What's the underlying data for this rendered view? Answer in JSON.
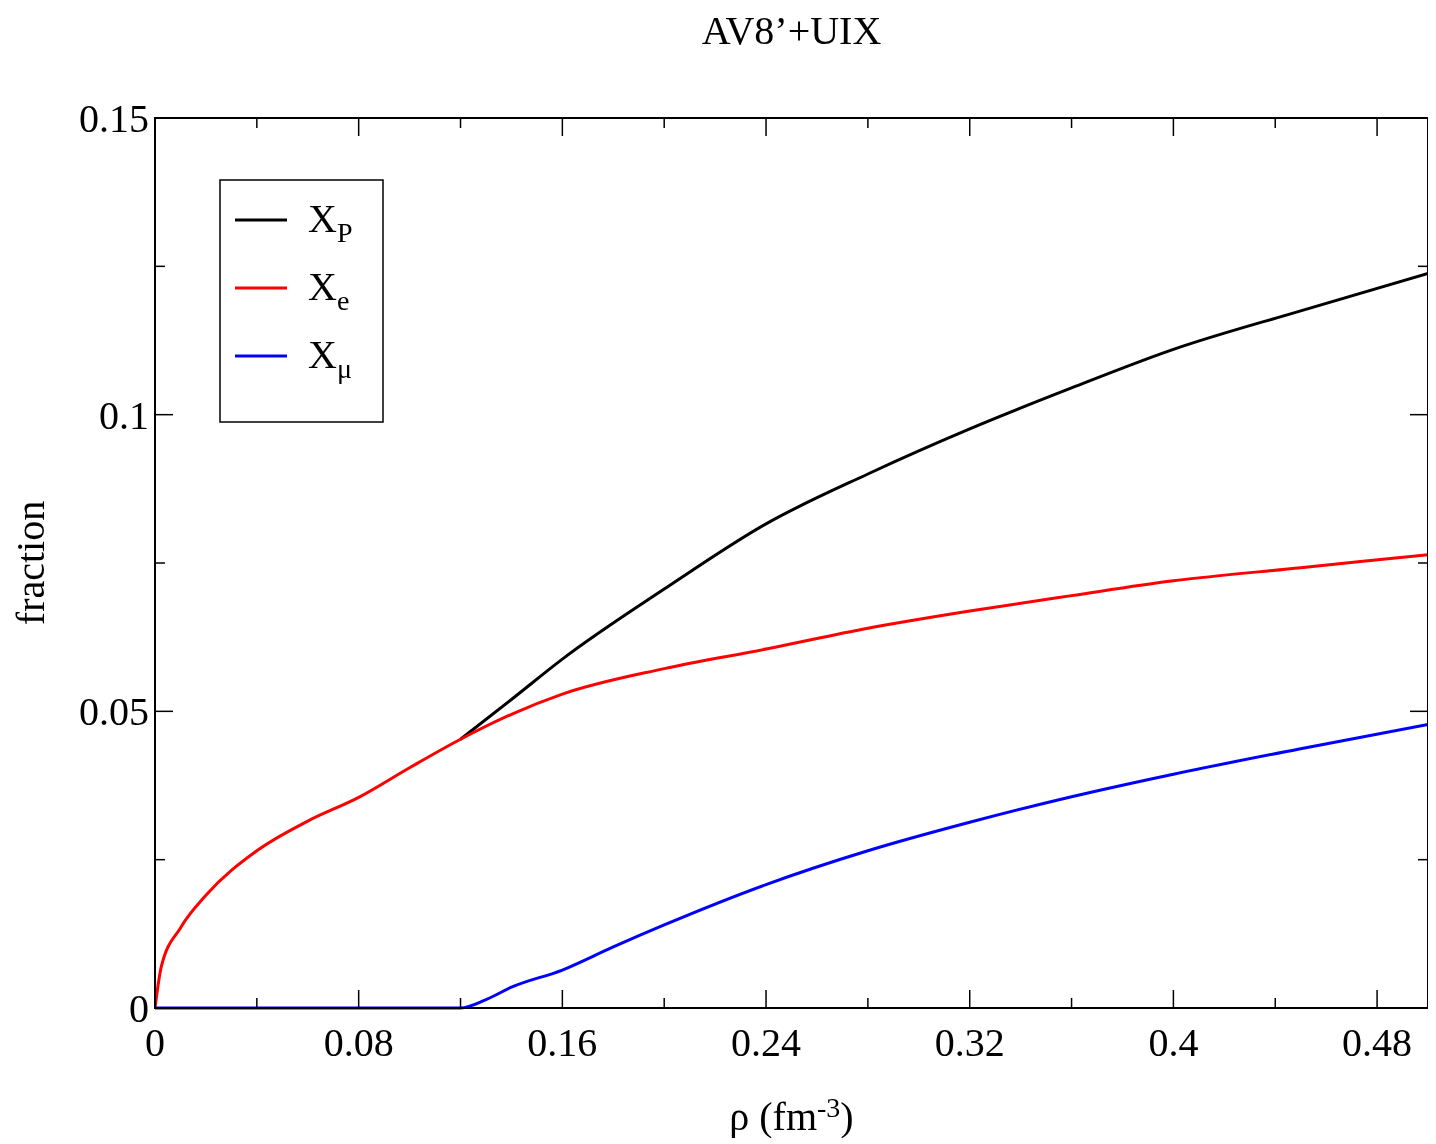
{
  "chart_data": {
    "type": "line",
    "title": "AV8’+UIX",
    "xlabel": "ρ (fm$^{-3}$)",
    "ylabel": "fraction",
    "xlim": [
      0,
      0.5
    ],
    "ylim": [
      0,
      0.15
    ],
    "xticks": [
      0,
      {
        "value": 0.04,
        "label": null
      },
      0.08,
      {
        "value": 0.12,
        "label": null
      },
      0.16,
      {
        "value": 0.2,
        "label": null
      },
      0.24,
      {
        "value": 0.28,
        "label": null
      },
      0.32,
      {
        "value": 0.36,
        "label": null
      },
      0.4,
      {
        "value": 0.44,
        "label": null
      },
      0.48
    ],
    "yticks": [
      0,
      {
        "value": 0.025,
        "label": null
      },
      0.05,
      {
        "value": 0.075,
        "label": null
      },
      0.1,
      {
        "value": 0.125,
        "label": null
      },
      0.15
    ],
    "grid": false,
    "legend": "top left",
    "line_style": "solid",
    "marker": "none",
    "series": [
      {
        "name": "X$_{P}$",
        "color": "#000000",
        "x": [
          0.12,
          0.14,
          0.16,
          0.2,
          0.24,
          0.28,
          0.32,
          0.36,
          0.4,
          0.45,
          0.5
        ],
        "values": [
          0.0453,
          0.052,
          0.0588,
          0.0706,
          0.0816,
          0.09,
          0.0976,
          0.1045,
          0.111,
          0.1175,
          0.1238
        ]
      },
      {
        "name": "X$_{e}$",
        "color": "#ff0000",
        "x": [
          0,
          0.0025,
          0.01,
          0.02,
          0.04,
          0.06,
          0.08,
          0.1,
          0.12,
          0.14,
          0.16,
          0.2,
          0.24,
          0.28,
          0.32,
          0.36,
          0.4,
          0.45,
          0.5
        ],
        "values": [
          0,
          0.007,
          0.0135,
          0.019,
          0.0265,
          0.0315,
          0.0355,
          0.0405,
          0.0453,
          0.0495,
          0.0529,
          0.0572,
          0.0605,
          0.064,
          0.0669,
          0.0695,
          0.072,
          0.0742,
          0.0764
        ]
      },
      {
        "name": "X$_{μ}$",
        "color": "#0000ff",
        "x": [
          0,
          0.12,
          0.13,
          0.14,
          0.16,
          0.18,
          0.2,
          0.24,
          0.28,
          0.32,
          0.36,
          0.4,
          0.45,
          0.5
        ],
        "values": [
          0,
          0,
          0.0014,
          0.0035,
          0.0064,
          0.0103,
          0.014,
          0.0208,
          0.0265,
          0.0313,
          0.0356,
          0.0394,
          0.0437,
          0.0478
        ]
      }
    ]
  }
}
